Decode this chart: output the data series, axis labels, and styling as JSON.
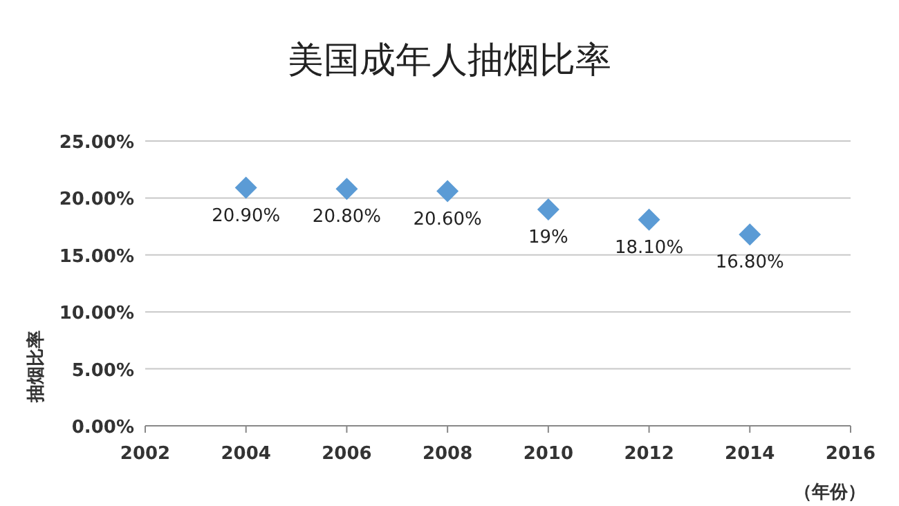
{
  "chart_data": {
    "type": "scatter",
    "title": "美国成年人抽烟比率",
    "xlabel": "（年份）",
    "ylabel": "抽烟比率",
    "x": [
      2004,
      2006,
      2008,
      2010,
      2012,
      2014
    ],
    "values": [
      20.9,
      20.8,
      20.6,
      19,
      18.1,
      16.8
    ],
    "value_labels": [
      "20.90%",
      "20.80%",
      "20.60%",
      "19%",
      "18.10%",
      "16.80%"
    ],
    "color": "#5b9bd5",
    "marker": "diamond",
    "xlim": [
      2002,
      2016
    ],
    "xticks": [
      2002,
      2004,
      2006,
      2008,
      2010,
      2012,
      2014,
      2016
    ],
    "ylim": [
      0,
      25
    ],
    "yticks": [
      {
        "value": 0,
        "label": "0.00%"
      },
      {
        "value": 5,
        "label": "5.00%"
      },
      {
        "value": 10,
        "label": "10.00%"
      },
      {
        "value": 15,
        "label": "15.00%"
      },
      {
        "value": 20,
        "label": "20.00%"
      },
      {
        "value": 25,
        "label": "25.00%"
      }
    ],
    "grid": "y"
  }
}
